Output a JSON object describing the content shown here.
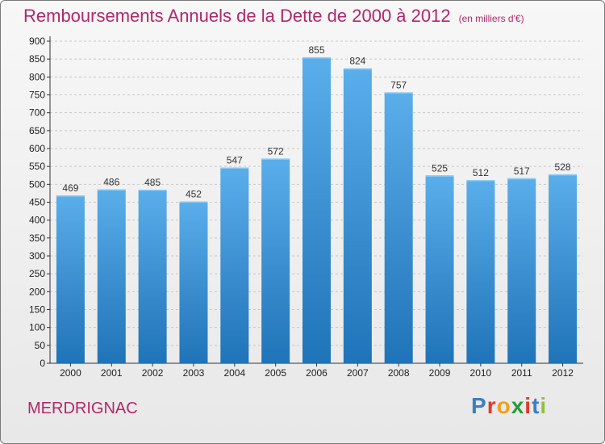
{
  "chart_title": "Remboursements Annuels de la Dette de 2000 à 2012",
  "chart_subtitle": "(en milliers d'€)",
  "commune": "MERDRIGNAC",
  "logo": {
    "text": "Proxiti",
    "letter_colors": [
      "#3a7fc4",
      "#e0392b",
      "#f0a020",
      "#2a9a3a",
      "#e0392b",
      "#3a7fc4",
      "#8fc23a"
    ]
  },
  "colors": {
    "title": "#b0286a",
    "bar_top": "#5aaeea",
    "bar_bottom": "#1f73b8",
    "grid": "#c8c8c8",
    "axis": "#333333"
  },
  "chart_data": {
    "type": "bar",
    "categories": [
      "2000",
      "2001",
      "2002",
      "2003",
      "2004",
      "2005",
      "2006",
      "2007",
      "2008",
      "2009",
      "2010",
      "2011",
      "2012"
    ],
    "values": [
      469,
      486,
      485,
      452,
      547,
      572,
      855,
      824,
      757,
      525,
      512,
      517,
      528
    ],
    "ylim": [
      0,
      900
    ],
    "yticks": [
      0,
      50,
      100,
      150,
      200,
      250,
      300,
      350,
      400,
      450,
      500,
      550,
      600,
      650,
      700,
      750,
      800,
      850,
      900
    ],
    "grid": "horizontal dashed"
  }
}
